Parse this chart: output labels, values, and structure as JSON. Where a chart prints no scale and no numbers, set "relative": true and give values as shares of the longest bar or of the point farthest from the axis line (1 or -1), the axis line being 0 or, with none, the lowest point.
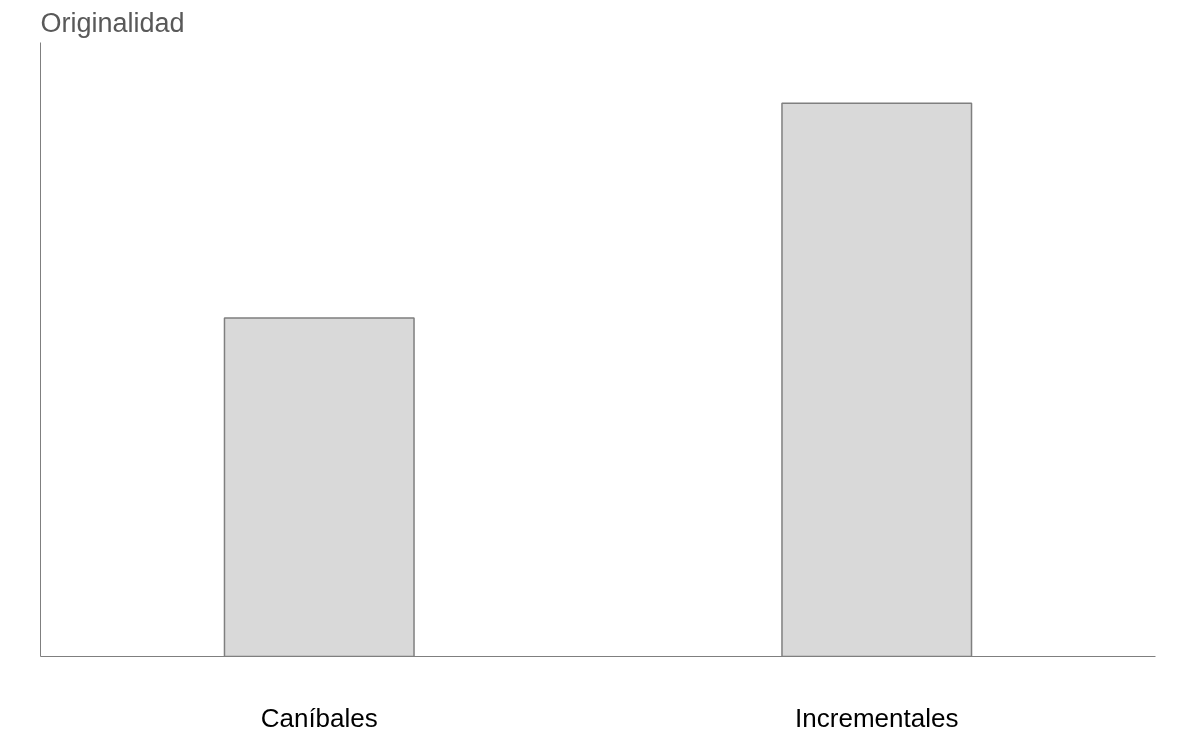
{
  "chart_data": {
    "type": "bar",
    "title": "Originalidad",
    "relative": true,
    "categories": [
      "Caníbales",
      "Incrementales"
    ],
    "series": [
      {
        "color": "#d9d9d9",
        "values": [
          0.612,
          1
        ]
      }
    ]
  }
}
